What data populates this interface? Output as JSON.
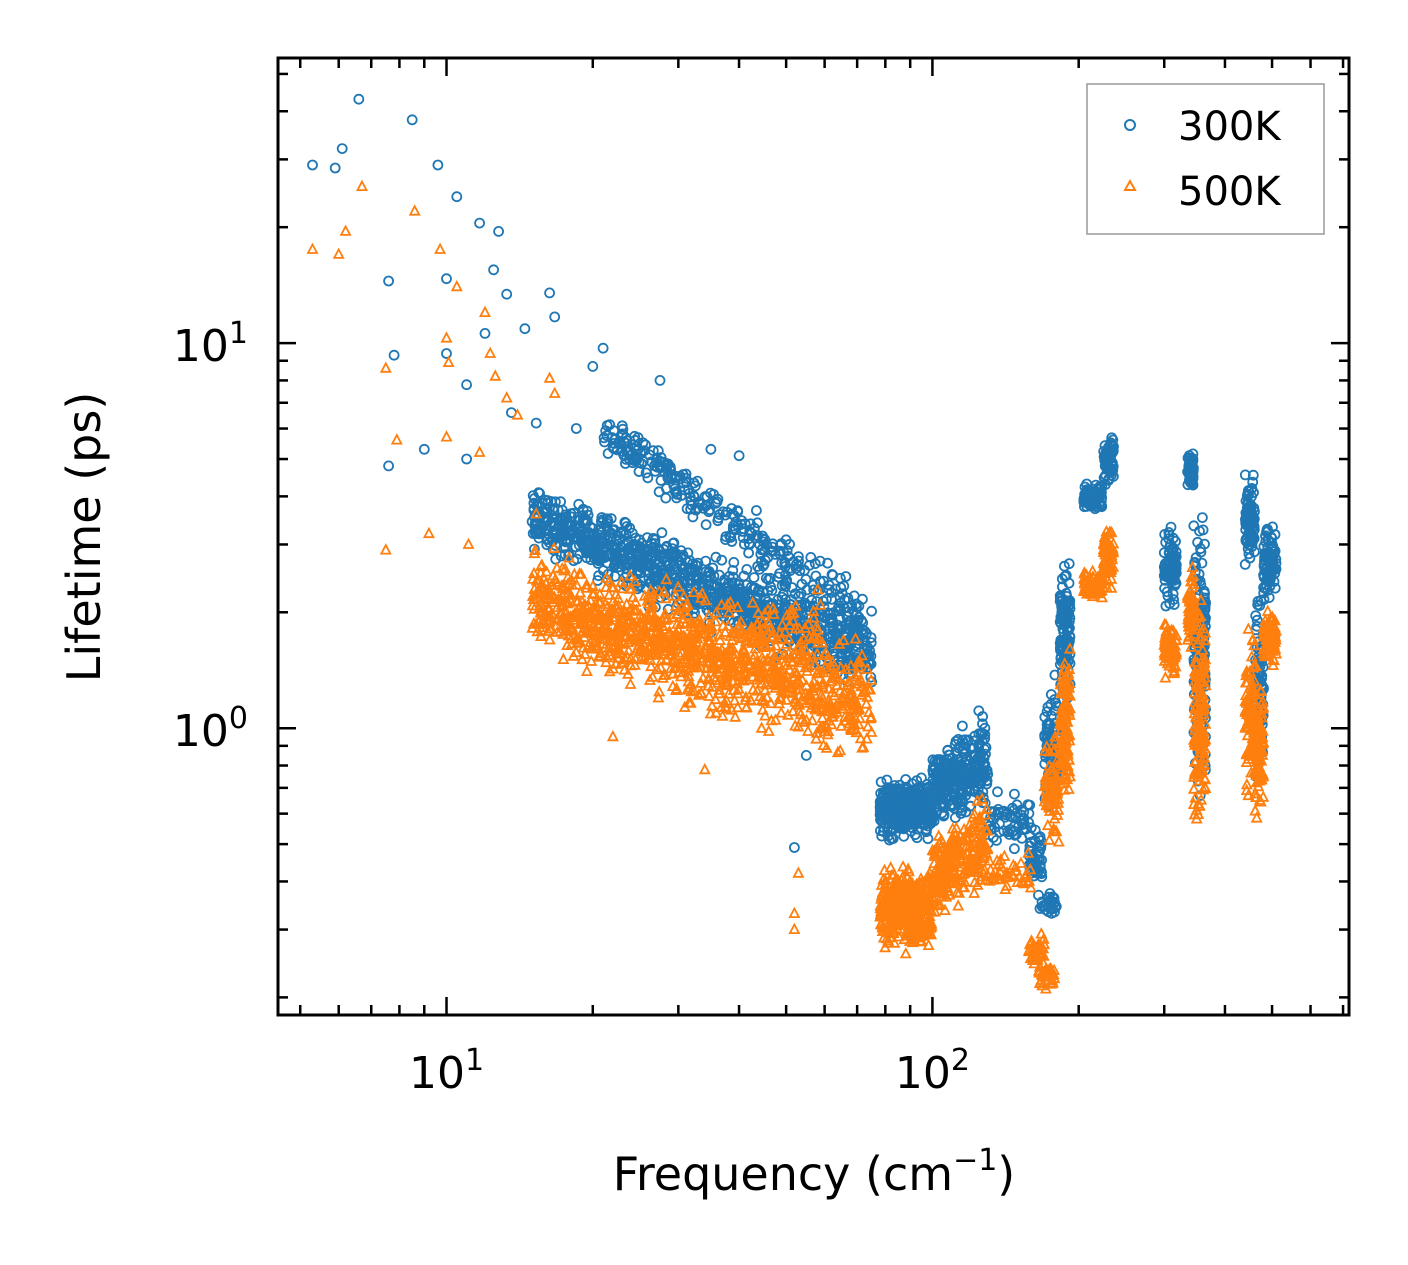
{
  "chart_data": {
    "type": "scatter",
    "title": "",
    "xlabel": "Frequency (cm",
    "xlabel_sup": "−1",
    "xlabel_end": ")",
    "ylabel": "Lifetime (ps)",
    "xscale": "log",
    "yscale": "log",
    "xlim": [
      4.5,
      720
    ],
    "ylim": [
      0.18,
      55
    ],
    "x_ticks": [
      {
        "base": "10",
        "exp": "1",
        "value": 10
      },
      {
        "base": "10",
        "exp": "2",
        "value": 100
      }
    ],
    "y_ticks": [
      {
        "base": "10",
        "exp": "0",
        "value": 1
      },
      {
        "base": "10",
        "exp": "1",
        "value": 10
      }
    ],
    "legend_position": "top-right",
    "colors": {
      "300K": "#1f77b4",
      "500K": "#ff7f0e"
    },
    "series": [
      {
        "name": "300K",
        "marker": "circle",
        "color": "#1f77b4",
        "sample_points": [
          [
            5.3,
            29
          ],
          [
            5.9,
            28.5
          ],
          [
            6.1,
            32
          ],
          [
            6.6,
            43
          ],
          [
            7.6,
            14.5
          ],
          [
            7.6,
            4.8
          ],
          [
            7.8,
            9.3
          ],
          [
            8.5,
            38
          ],
          [
            9,
            5.3
          ],
          [
            9.6,
            29
          ],
          [
            10,
            14.7
          ],
          [
            10,
            9.4
          ],
          [
            10.5,
            24
          ],
          [
            11,
            7.8
          ],
          [
            11,
            5
          ],
          [
            11.7,
            20.5
          ],
          [
            12,
            10.6
          ],
          [
            12.5,
            15.5
          ],
          [
            12.8,
            19.5
          ],
          [
            13.3,
            13.4
          ],
          [
            13.6,
            6.6
          ],
          [
            14.5,
            10.9
          ],
          [
            15.3,
            6.2
          ],
          [
            16.3,
            13.5
          ],
          [
            16.7,
            11.7
          ],
          [
            18.5,
            6
          ],
          [
            20,
            8.7
          ],
          [
            21,
            9.7
          ],
          [
            23,
            6.1
          ],
          [
            27.5,
            8
          ],
          [
            35,
            5.3
          ],
          [
            40,
            5.1
          ],
          [
            52,
            0.49
          ],
          [
            55,
            0.85
          ]
        ],
        "bands": [
          {
            "x": [
              15,
              75
            ],
            "y_start": [
              4.6,
              2.1
            ],
            "y_end": [
              2.7,
              1.15
            ],
            "n": 1000
          },
          {
            "x": [
              21,
              72
            ],
            "y_start": [
              7.0,
              2.5
            ],
            "y_end": [
              5.0,
              1.5
            ],
            "n": 300
          },
          {
            "x": [
              78,
              100
            ],
            "y": [
              0.5,
              0.76
            ],
            "n": 380
          },
          {
            "x": [
              100,
              130
            ],
            "y_start": [
              0.55,
              0.55
            ],
            "y_end": [
              0.88,
              1.22
            ],
            "n": 280
          },
          {
            "x": [
              130,
              160
            ],
            "y": [
              0.45,
              0.72
            ],
            "n": 60
          },
          {
            "x": [
              158,
              168
            ],
            "y": [
              0.38,
              0.56
            ],
            "n": 40
          },
          {
            "x": [
              165,
              180
            ],
            "y": [
              0.32,
              0.38
            ],
            "n": 30
          },
          {
            "x": [
              170,
              182
            ],
            "y": [
              0.55,
              1.5
            ],
            "n": 80
          },
          {
            "x": [
              183,
              192
            ],
            "y": [
              1.0,
              3.0
            ],
            "n": 120
          },
          {
            "x": [
              205,
              225
            ],
            "y": [
              3.6,
              4.4
            ],
            "n": 80
          },
          {
            "x": [
              225,
              236
            ],
            "y": [
              4.0,
              6.2
            ],
            "n": 60
          },
          {
            "x": [
              300,
              318
            ],
            "y": [
              2.0,
              3.5
            ],
            "n": 80
          },
          {
            "x": [
              335,
              345
            ],
            "y": [
              4.0,
              5.3
            ],
            "n": 60
          },
          {
            "x": [
              345,
              365
            ],
            "y": [
              0.55,
              4.5
            ],
            "n": 160
          },
          {
            "x": [
              440,
              460
            ],
            "y": [
              2.5,
              4.8
            ],
            "n": 90
          },
          {
            "x": [
              460,
              480
            ],
            "y": [
              0.7,
              2.5
            ],
            "n": 100
          },
          {
            "x": [
              480,
              510
            ],
            "y": [
              2.0,
              3.6
            ],
            "n": 90
          }
        ]
      },
      {
        "name": "500K",
        "marker": "triangle",
        "color": "#ff7f0e",
        "sample_points": [
          [
            5.3,
            17.5
          ],
          [
            6,
            17
          ],
          [
            6.2,
            19.5
          ],
          [
            6.7,
            25.5
          ],
          [
            7.5,
            8.6
          ],
          [
            7.5,
            2.9
          ],
          [
            7.9,
            5.6
          ],
          [
            8.6,
            22
          ],
          [
            9.2,
            3.2
          ],
          [
            9.7,
            17.5
          ],
          [
            10,
            10.3
          ],
          [
            10,
            5.7
          ],
          [
            10.1,
            8.9
          ],
          [
            10.5,
            14
          ],
          [
            11.1,
            3
          ],
          [
            11.7,
            5.2
          ],
          [
            12,
            12
          ],
          [
            12.3,
            9.4
          ],
          [
            12.6,
            8.2
          ],
          [
            13.3,
            7.2
          ],
          [
            14,
            6.5
          ],
          [
            15.3,
            3.6
          ],
          [
            16.3,
            8.1
          ],
          [
            16.7,
            7.4
          ],
          [
            22,
            0.95
          ],
          [
            34,
            0.78
          ],
          [
            52,
            0.3
          ],
          [
            52,
            0.33
          ],
          [
            53,
            0.42
          ]
        ],
        "bands": [
          {
            "x": [
              15,
              75
            ],
            "y_start": [
              3.2,
              1.8
            ],
            "y_end": [
              1.45,
              0.72
            ],
            "n": 1000
          },
          {
            "x": [
              18,
              60
            ],
            "y": [
              1.2,
              2.5
            ],
            "n": 200
          },
          {
            "x": [
              78,
              100
            ],
            "y": [
              0.25,
              0.46
            ],
            "n": 380
          },
          {
            "x": [
              100,
              130
            ],
            "y_start": [
              0.31,
              0.35
            ],
            "y_end": [
              0.55,
              0.72
            ],
            "n": 250
          },
          {
            "x": [
              130,
              160
            ],
            "y": [
              0.35,
              0.5
            ],
            "n": 40
          },
          {
            "x": [
              158,
              170
            ],
            "y": [
              0.23,
              0.3
            ],
            "n": 40
          },
          {
            "x": [
              165,
              180
            ],
            "y": [
              0.2,
              0.25
            ],
            "n": 30
          },
          {
            "x": [
              170,
              182
            ],
            "y": [
              0.45,
              1.0
            ],
            "n": 70
          },
          {
            "x": [
              183,
              192
            ],
            "y": [
              0.6,
              1.8
            ],
            "n": 110
          },
          {
            "x": [
              205,
              225
            ],
            "y": [
              2.1,
              2.6
            ],
            "n": 70
          },
          {
            "x": [
              225,
              236
            ],
            "y": [
              2.2,
              3.6
            ],
            "n": 60
          },
          {
            "x": [
              300,
              318
            ],
            "y": [
              1.3,
              2.0
            ],
            "n": 70
          },
          {
            "x": [
              335,
              345
            ],
            "y": [
              1.5,
              2.8
            ],
            "n": 50
          },
          {
            "x": [
              345,
              365
            ],
            "y": [
              0.45,
              2.6
            ],
            "n": 150
          },
          {
            "x": [
              440,
              460
            ],
            "y": [
              0.6,
              2.1
            ],
            "n": 90
          },
          {
            "x": [
              460,
              480
            ],
            "y": [
              0.5,
              1.5
            ],
            "n": 90
          },
          {
            "x": [
              480,
              510
            ],
            "y": [
              1.4,
              2.1
            ],
            "n": 90
          }
        ]
      }
    ]
  }
}
